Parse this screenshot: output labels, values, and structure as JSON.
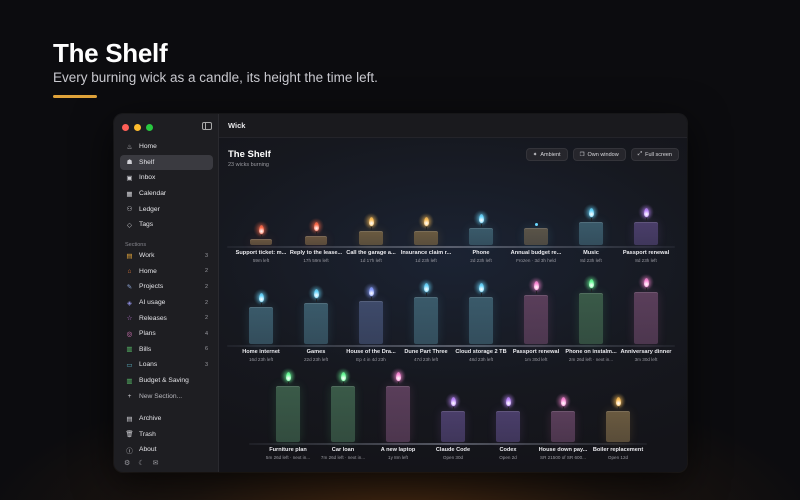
{
  "hero": {
    "title": "The Shelf",
    "subtitle": "Every burning wick as a candle, its height the time left."
  },
  "window": {
    "title": "Wick"
  },
  "sidebar": {
    "items": [
      {
        "label": "Home",
        "icon": "flame-icon",
        "glyph": "♨"
      },
      {
        "label": "Shelf",
        "icon": "candle-icon",
        "glyph": "☗",
        "active": true
      },
      {
        "label": "Inbox",
        "icon": "inbox-icon",
        "glyph": "▣"
      },
      {
        "label": "Calendar",
        "icon": "calendar-icon",
        "glyph": "▦"
      },
      {
        "label": "Ledger",
        "icon": "people-icon",
        "glyph": "⚇"
      },
      {
        "label": "Tags",
        "icon": "tag-icon",
        "glyph": "◇"
      }
    ],
    "sections_label": "Sections",
    "sections": [
      {
        "label": "Work",
        "icon": "briefcase-icon",
        "glyph": "▤",
        "count": "3",
        "color": "#e0a33a"
      },
      {
        "label": "Home",
        "icon": "house-icon",
        "glyph": "⌂",
        "count": "2",
        "color": "#e07a3a"
      },
      {
        "label": "Projects",
        "icon": "wrench-icon",
        "glyph": "✎",
        "count": "2",
        "color": "#8fa7d8"
      },
      {
        "label": "AI usage",
        "icon": "ai-icon",
        "glyph": "◈",
        "count": "2",
        "color": "#8e8ee0"
      },
      {
        "label": "Releases",
        "icon": "star-icon",
        "glyph": "☆",
        "count": "2",
        "color": "#c77ae0"
      },
      {
        "label": "Plans",
        "icon": "target-icon",
        "glyph": "◎",
        "count": "4",
        "color": "#e07ac0"
      },
      {
        "label": "Bills",
        "icon": "bill-icon",
        "glyph": "▥",
        "count": "6",
        "color": "#5ac06a"
      },
      {
        "label": "Loans",
        "icon": "card-icon",
        "glyph": "▭",
        "count": "3",
        "color": "#5ab0c0"
      },
      {
        "label": "Budget & Saving",
        "icon": "wallet-icon",
        "glyph": "▥",
        "count": "",
        "color": "#5ac06a"
      }
    ],
    "new_section": "New Section...",
    "bottom": [
      {
        "label": "Archive",
        "icon": "archive-icon",
        "glyph": "▤"
      },
      {
        "label": "Trash",
        "icon": "trash-icon",
        "glyph": "🗑"
      },
      {
        "label": "About",
        "icon": "info-icon",
        "glyph": "ⓘ"
      }
    ],
    "footer_icons": [
      "gear-icon",
      "moon-icon",
      "mail-icon"
    ]
  },
  "main": {
    "title": "The Shelf",
    "subtitle": "23 wicks burning",
    "actions": [
      {
        "label": "Ambient",
        "icon": "sparkle-icon",
        "glyph": "✦"
      },
      {
        "label": "Own window",
        "icon": "window-icon",
        "glyph": "❐"
      },
      {
        "label": "Full screen",
        "icon": "expand-icon",
        "glyph": "⤢"
      }
    ]
  },
  "shelves": [
    [
      {
        "title": "Support ticket: m...",
        "meta": "59m left",
        "level": 0.06,
        "flame": "#ff6a4a",
        "wax": "#6a5640"
      },
      {
        "title": "Reply to the lease...",
        "meta": "17h 59m left",
        "level": 0.3,
        "flame": "#ff6a4a",
        "wax": "#6a5640"
      },
      {
        "title": "Call the garage a...",
        "meta": "1d 17h left",
        "level": 0.45,
        "flame": "#ffc15a",
        "wax": "#6a5a40"
      },
      {
        "title": "Insurance claim r...",
        "meta": "1d 23h left",
        "level": 0.48,
        "flame": "#ffc15a",
        "wax": "#6a5a40"
      },
      {
        "title": "Phone",
        "meta": "2d 23h left",
        "level": 0.55,
        "flame": "#6ad8ff",
        "wax": "#3a5a6a"
      },
      {
        "title": "Annual budget re...",
        "meta": "Frozen · 3d 3h held",
        "level": 0.55,
        "flame": "#6ad8ff",
        "wax": "#5a5448",
        "frozen": true
      },
      {
        "title": "Music",
        "meta": "8d 23h left",
        "level": 0.75,
        "flame": "#6ad8ff",
        "wax": "#3a5a6a"
      },
      {
        "title": "Passport renewal",
        "meta": "8d 23h left",
        "level": 0.75,
        "flame": "#c08aff",
        "wax": "#4a3e6a"
      }
    ],
    [
      {
        "title": "Home internet",
        "meta": "16d 23h left",
        "level": 0.72,
        "flame": "#6ad8ff",
        "wax": "#3a5a6a"
      },
      {
        "title": "Games",
        "meta": "22d 23h left",
        "level": 0.78,
        "flame": "#6ad8ff",
        "wax": "#3a5a6a"
      },
      {
        "title": "House of the Dra...",
        "meta": "Ep 4 in 4d 23h",
        "level": 0.82,
        "flame": "#8aa0ff",
        "wax": "#3e4a6a"
      },
      {
        "title": "Dune Part Three",
        "meta": "47d 23h left",
        "level": 0.9,
        "flame": "#6ad8ff",
        "wax": "#3a5a6a"
      },
      {
        "title": "Cloud storage 2 TB",
        "meta": "48d 23h left",
        "level": 0.9,
        "flame": "#6ad8ff",
        "wax": "#3a5a6a"
      },
      {
        "title": "Passport renewal",
        "meta": "1m 30d left",
        "level": 0.95,
        "flame": "#ff8ad8",
        "wax": "#5a3e5a"
      },
      {
        "title": "Phone on instalm...",
        "meta": "2m 26d left · next in...",
        "level": 0.98,
        "flame": "#6aff9a",
        "wax": "#3a5a48"
      },
      {
        "title": "Anniversary dinner",
        "meta": "3m 30d left",
        "level": 1.0,
        "flame": "#ff8ad8",
        "wax": "#5a3e5a"
      }
    ],
    [
      {
        "title": "Furniture plan",
        "meta": "5m 26d left · next in...",
        "level": 1.0,
        "flame": "#6aff9a",
        "wax": "#3a5a48"
      },
      {
        "title": "Car loan",
        "meta": "7m 26d left · next in...",
        "level": 1.0,
        "flame": "#6aff9a",
        "wax": "#3a5a48"
      },
      {
        "title": "A new laptop",
        "meta": "1y 8m left",
        "level": 1.0,
        "flame": "#ff8ad8",
        "wax": "#5a3e5a"
      },
      {
        "title": "Claude Code",
        "meta": "Open 30d",
        "level": 0.55,
        "flame": "#c08aff",
        "wax": "#4a3e6a"
      },
      {
        "title": "Codex",
        "meta": "Open 2d",
        "level": 0.55,
        "flame": "#c08aff",
        "wax": "#4a3e6a"
      },
      {
        "title": "House down pay...",
        "meta": "SR 21500 of SR 600...",
        "level": 0.55,
        "flame": "#ff8ad8",
        "wax": "#5a3e5a"
      },
      {
        "title": "Boiler replacement",
        "meta": "Open 12d",
        "level": 0.55,
        "flame": "#ffc15a",
        "wax": "#6a5a40"
      }
    ]
  ]
}
